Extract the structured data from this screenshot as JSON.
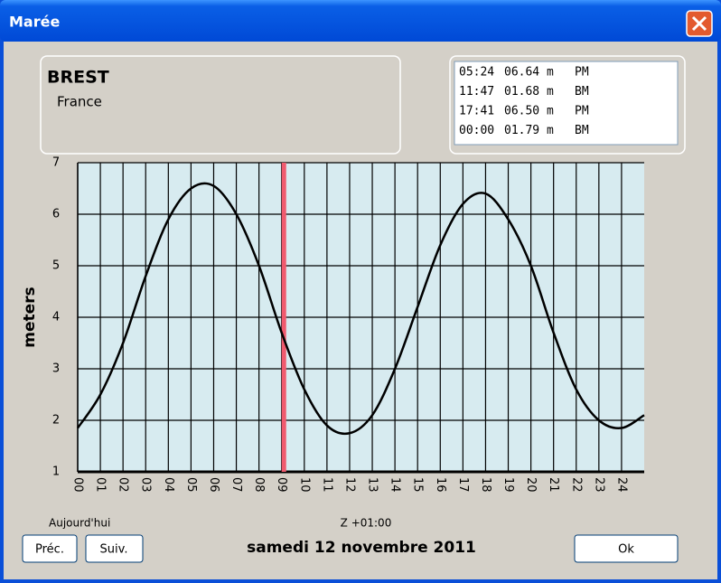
{
  "window": {
    "title": "Marée"
  },
  "location": {
    "city": "BREST",
    "country": "France"
  },
  "tide_table": [
    {
      "time": "05:24",
      "height": "06.64 m",
      "kind": "PM"
    },
    {
      "time": "11:47",
      "height": "01.68 m",
      "kind": "BM"
    },
    {
      "time": "17:41",
      "height": "06.50 m",
      "kind": "PM"
    },
    {
      "time": "00:00",
      "height": "01.79 m",
      "kind": "BM"
    }
  ],
  "chart_data": {
    "type": "line",
    "y_label": "meters",
    "x": [
      0,
      1,
      2,
      3,
      4,
      5,
      6,
      7,
      8,
      9,
      10,
      11,
      12,
      13,
      14,
      15,
      16,
      17,
      18,
      19,
      20,
      21,
      22,
      23,
      24,
      25
    ],
    "series": [
      {
        "color": "#000000",
        "values": [
          1.85,
          2.5,
          3.5,
          4.8,
          5.9,
          6.5,
          6.55,
          6.0,
          5.0,
          3.7,
          2.6,
          1.9,
          1.75,
          2.1,
          3.0,
          4.2,
          5.4,
          6.2,
          6.4,
          5.9,
          5.0,
          3.7,
          2.6,
          2.0,
          1.85,
          2.1
        ]
      }
    ],
    "xlim": [
      0,
      25
    ],
    "xticks": [
      {
        "value": 0,
        "label": "00"
      },
      {
        "value": 1,
        "label": "01"
      },
      {
        "value": 2,
        "label": "02"
      },
      {
        "value": 3,
        "label": "03"
      },
      {
        "value": 4,
        "label": "04"
      },
      {
        "value": 5,
        "label": "05"
      },
      {
        "value": 6,
        "label": "06"
      },
      {
        "value": 7,
        "label": "07"
      },
      {
        "value": 8,
        "label": "08"
      },
      {
        "value": 9,
        "label": "09"
      },
      {
        "value": 10,
        "label": "10"
      },
      {
        "value": 11,
        "label": "11"
      },
      {
        "value": 12,
        "label": "12"
      },
      {
        "value": 13,
        "label": "13"
      },
      {
        "value": 14,
        "label": "14"
      },
      {
        "value": 15,
        "label": "15"
      },
      {
        "value": 16,
        "label": "16"
      },
      {
        "value": 17,
        "label": "17"
      },
      {
        "value": 18,
        "label": "18"
      },
      {
        "value": 19,
        "label": "19"
      },
      {
        "value": 20,
        "label": "20"
      },
      {
        "value": 21,
        "label": "21"
      },
      {
        "value": 22,
        "label": "22"
      },
      {
        "value": 23,
        "label": "23"
      },
      {
        "value": 24,
        "label": "24"
      }
    ],
    "ylim": [
      1,
      7
    ],
    "yticks": [
      1,
      2,
      3,
      4,
      5,
      6,
      7
    ],
    "grid": true,
    "now_marker": {
      "x": 9.1,
      "color": "#f05a6e"
    }
  },
  "footer": {
    "today": "Aujourd'hui",
    "timezone": "Z +01:00",
    "date": "samedi 12 novembre 2011",
    "buttons": {
      "prev": "Préc.",
      "next": "Suiv.",
      "ok": "Ok"
    }
  }
}
